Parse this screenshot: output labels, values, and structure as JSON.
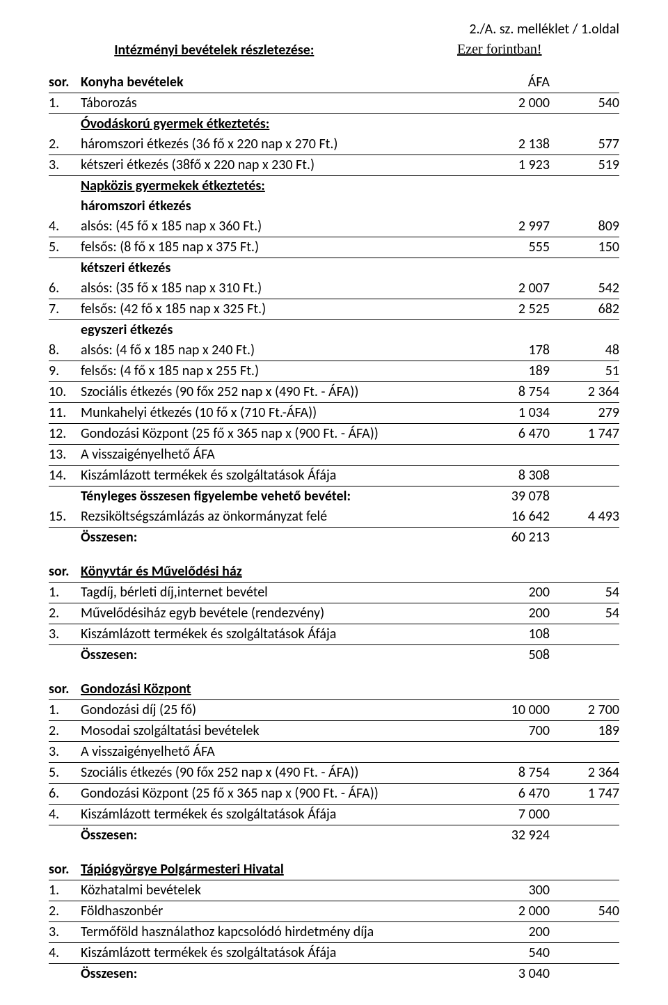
{
  "page_header": "2./A. sz. melléklet / 1.oldal",
  "title": "Intézményi bevételek részletezése:",
  "currency_note": "Ezer forintban!",
  "colors": {
    "text": "#000000",
    "background": "#ffffff",
    "border": "#000000"
  },
  "fonts": {
    "body": "Calibri",
    "note": "Times New Roman",
    "size_pt": 15
  },
  "sections": {
    "konyha": {
      "sor": "sor.",
      "heading": "Konyha bevételek",
      "afa": "ÁFA",
      "r1": {
        "n": "1.",
        "d": "Táborozás",
        "v1": "2 000",
        "v2": "540"
      },
      "sub1": "Óvodáskorú gyermek étkeztetés:",
      "r2": {
        "n": "2.",
        "d": "háromszori étkezés (36 fő x 220 nap x 270 Ft.)",
        "v1": "2 138",
        "v2": "577"
      },
      "r3": {
        "n": "3.",
        "d": "kétszeri étkezés (38fő x 220 nap x 230 Ft.)",
        "v1": "1 923",
        "v2": "519"
      },
      "sub2": "Napközis gyermekek étkeztetés:",
      "sub3": "háromszori étkezés",
      "r4": {
        "n": "4.",
        "d": "alsós: (45 fő x 185 nap x 360 Ft.)",
        "v1": "2 997",
        "v2": "809"
      },
      "r5": {
        "n": "5.",
        "d": "felsős: (8 fő x 185 nap x 375 Ft.)",
        "v1": "555",
        "v2": "150"
      },
      "sub4": "kétszeri étkezés",
      "r6": {
        "n": "6.",
        "d": "alsós: (35 fő x 185 nap x 310 Ft.)",
        "v1": "2 007",
        "v2": "542"
      },
      "r7": {
        "n": "7.",
        "d": "felsős: (42 fő x 185 nap x 325 Ft.)",
        "v1": "2 525",
        "v2": "682"
      },
      "sub5": "egyszeri étkezés",
      "r8": {
        "n": "8.",
        "d": "alsós: (4 fő x 185 nap x 240 Ft.)",
        "v1": "178",
        "v2": "48"
      },
      "r9": {
        "n": "9.",
        "d": "felsős: (4 fő x 185 nap x 255 Ft.)",
        "v1": "189",
        "v2": "51"
      },
      "r10": {
        "n": "10.",
        "d": "Szociális étkezés (90 főx 252 nap x (490 Ft. - ÁFA))",
        "v1": "8 754",
        "v2": "2 364"
      },
      "r11": {
        "n": "11.",
        "d": "Munkahelyi étkezés (10 fő x (710 Ft.-ÁFA))",
        "v1": "1 034",
        "v2": "279"
      },
      "r12": {
        "n": "12.",
        "d": "Gondozási Központ (25 fő x 365 nap x (900 Ft. - ÁFA))",
        "v1": "6 470",
        "v2": "1 747"
      },
      "r13": {
        "n": "13.",
        "d": "A visszaigényelhető ÁFA",
        "v1": "",
        "v2": ""
      },
      "r14": {
        "n": "14.",
        "d": "Kiszámlázott termékek és szolgáltatások Áfája",
        "v1": "8 308",
        "v2": ""
      },
      "tot1": {
        "d": "Tényleges összesen figyelembe vehető bevétel:",
        "v1": "39 078"
      },
      "r15": {
        "n": "15.",
        "d": "Rezsiköltségszámlázás az önkormányzat felé",
        "v1": "16 642",
        "v2": "4 493"
      },
      "tot2": {
        "d": "Összesen:",
        "v1": "60 213"
      }
    },
    "konyvtar": {
      "sor": "sor.",
      "heading": "Könyvtár és Művelődési ház",
      "r1": {
        "n": "1.",
        "d": "Tagdíj, bérleti díj,internet bevétel",
        "v1": "200",
        "v2": "54"
      },
      "r2": {
        "n": "2.",
        "d": "Művelődésiház egyb bevétele (rendezvény)",
        "v1": "200",
        "v2": "54"
      },
      "r3": {
        "n": "3.",
        "d": "Kiszámlázott termékek és szolgáltatások Áfája",
        "v1": "108",
        "v2": ""
      },
      "tot": {
        "d": "Összesen:",
        "v1": "508"
      }
    },
    "gondozasi": {
      "sor": "sor.",
      "heading": "Gondozási Központ",
      "r1": {
        "n": "1.",
        "d": "Gondozási díj (25 fő)",
        "v1": "10 000",
        "v2": "2 700"
      },
      "r2": {
        "n": "2.",
        "d": "Mosodai szolgáltatási bevételek",
        "v1": "700",
        "v2": "189"
      },
      "r3": {
        "n": "3.",
        "d": "A visszaigényelhető ÁFA",
        "v1": "",
        "v2": ""
      },
      "r5": {
        "n": "5.",
        "d": "Szociális étkezés (90 főx 252 nap x (490 Ft. - ÁFA))",
        "v1": "8 754",
        "v2": "2 364"
      },
      "r6": {
        "n": "6.",
        "d": "Gondozási Központ (25 fő x 365 nap x (900 Ft. - ÁFA))",
        "v1": "6 470",
        "v2": "1 747"
      },
      "r4": {
        "n": "4.",
        "d": "Kiszámlázott termékek és szolgáltatások Áfája",
        "v1": "7 000",
        "v2": ""
      },
      "tot": {
        "d": "Összesen:",
        "v1": "32 924"
      }
    },
    "hivatal": {
      "sor": "sor.",
      "heading": "Tápiógyörgye Polgármesteri  Hivatal",
      "r1": {
        "n": "1.",
        "d": "Közhatalmi bevételek",
        "v1": "300",
        "v2": ""
      },
      "r2": {
        "n": "2.",
        "d": "Földhaszonbér",
        "v1": "2 000",
        "v2": "540"
      },
      "r3": {
        "n": "3.",
        "d": "Termőföld használathoz kapcsolódó hirdetmény díja",
        "v1": "200",
        "v2": ""
      },
      "r4": {
        "n": "4.",
        "d": "Kiszámlázott termékek és szolgáltatások Áfája",
        "v1": "540",
        "v2": ""
      },
      "tot": {
        "d": "Összesen:",
        "v1": "3 040"
      }
    }
  }
}
